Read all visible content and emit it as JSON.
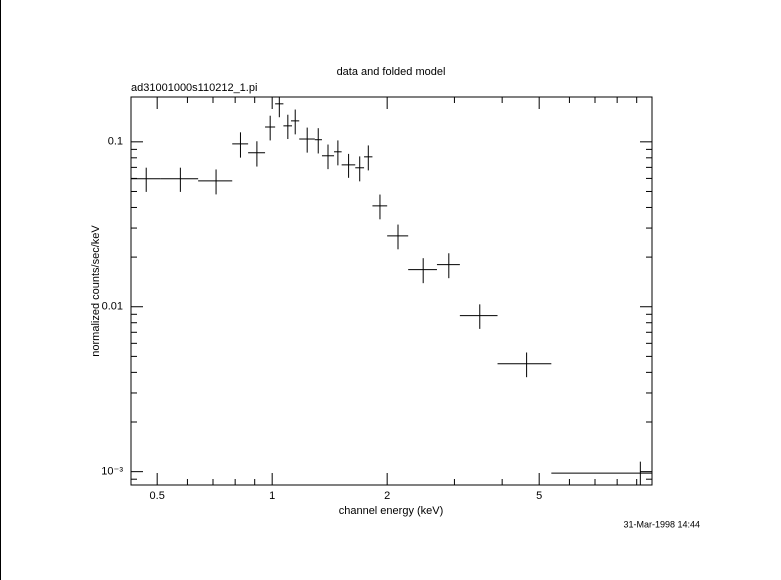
{
  "chart_data": {
    "type": "errorbar",
    "title": "data and folded model",
    "subtitle": "ad31001000s110212_1.pi",
    "xlabel": "channel energy (keV)",
    "ylabel": "normalized counts/sec/keV",
    "footer": "31-Mar-1998 14:44",
    "xscale": "log",
    "yscale": "log",
    "xlim": [
      0.427,
      9.87
    ],
    "ylim": [
      0.00083,
      0.187
    ],
    "xticks": [
      0.5,
      1,
      2,
      5
    ],
    "yticks": [
      0.1,
      0.01,
      {
        "value": 0.001,
        "label": "10⁻³"
      }
    ],
    "xminorticks": [
      0.6,
      0.7,
      0.8,
      0.9,
      3,
      4,
      6,
      7,
      8,
      9
    ],
    "yminorticks": [
      0.0009,
      0.002,
      0.003,
      0.004,
      0.005,
      0.006,
      0.007,
      0.008,
      0.009,
      0.02,
      0.03,
      0.04,
      0.05,
      0.06,
      0.07,
      0.08,
      0.09
    ],
    "color": "#000000",
    "x": [
      0.468,
      0.575,
      0.713,
      0.826,
      0.912,
      0.988,
      1.044,
      1.099,
      1.149,
      1.235,
      1.32,
      1.4,
      1.486,
      1.585,
      1.695,
      1.785,
      1.915,
      2.135,
      2.485,
      2.9,
      3.495,
      4.635,
      9.2
    ],
    "x_low": [
      0.427,
      0.509,
      0.64,
      0.786,
      0.865,
      0.958,
      1.018,
      1.07,
      1.12,
      1.177,
      1.293,
      1.35,
      1.452,
      1.52,
      1.65,
      1.74,
      1.83,
      2.0,
      2.27,
      2.7,
      3.1,
      3.89,
      5.38
    ],
    "x_high": [
      0.509,
      0.64,
      0.786,
      0.865,
      0.958,
      1.018,
      1.07,
      1.127,
      1.177,
      1.293,
      1.35,
      1.452,
      1.52,
      1.65,
      1.74,
      1.83,
      2.0,
      2.27,
      2.7,
      3.1,
      3.89,
      5.38,
      9.87
    ],
    "values": [
      0.0597,
      0.0597,
      0.058,
      0.0972,
      0.0858,
      0.123,
      0.17,
      0.125,
      0.134,
      0.104,
      0.103,
      0.0823,
      0.087,
      0.0725,
      0.0696,
      0.0811,
      0.0409,
      0.0269,
      0.0168,
      0.018,
      0.00884,
      0.00451,
      0.00098
    ],
    "errors": [
      0.01,
      0.01,
      0.01,
      0.017,
      0.015,
      0.021,
      0.029,
      0.021,
      0.023,
      0.018,
      0.018,
      0.014,
      0.015,
      0.012,
      0.012,
      0.014,
      0.007,
      0.0046,
      0.0029,
      0.0031,
      0.0015,
      0.00077,
      0.00017
    ]
  }
}
